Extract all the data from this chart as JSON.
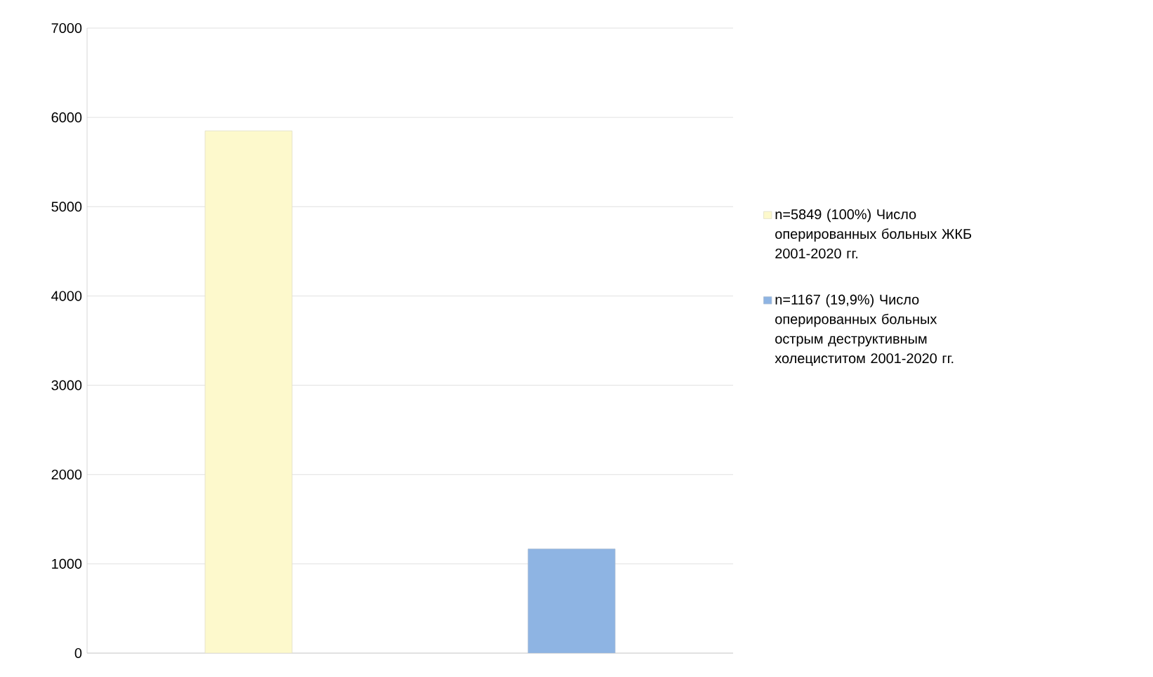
{
  "chart_data": {
    "type": "bar",
    "categories": [
      null,
      null
    ],
    "series": [
      {
        "name": "n=5849 (100%) Число оперированных больных ЖКБ 2001-2020 гг.",
        "color": "#fdf9cc",
        "values": [
          5849,
          null
        ]
      },
      {
        "name": "n=1167 (19,9%) Число оперированных больных острым деструктивным холециститом 2001-2020 гг.",
        "color": "#8eb4e3",
        "values": [
          null,
          1167
        ]
      }
    ],
    "ylim": [
      0,
      7000
    ],
    "yticks": [
      0,
      1000,
      2000,
      3000,
      4000,
      5000,
      6000,
      7000
    ],
    "grid": "y",
    "legend": "right"
  }
}
